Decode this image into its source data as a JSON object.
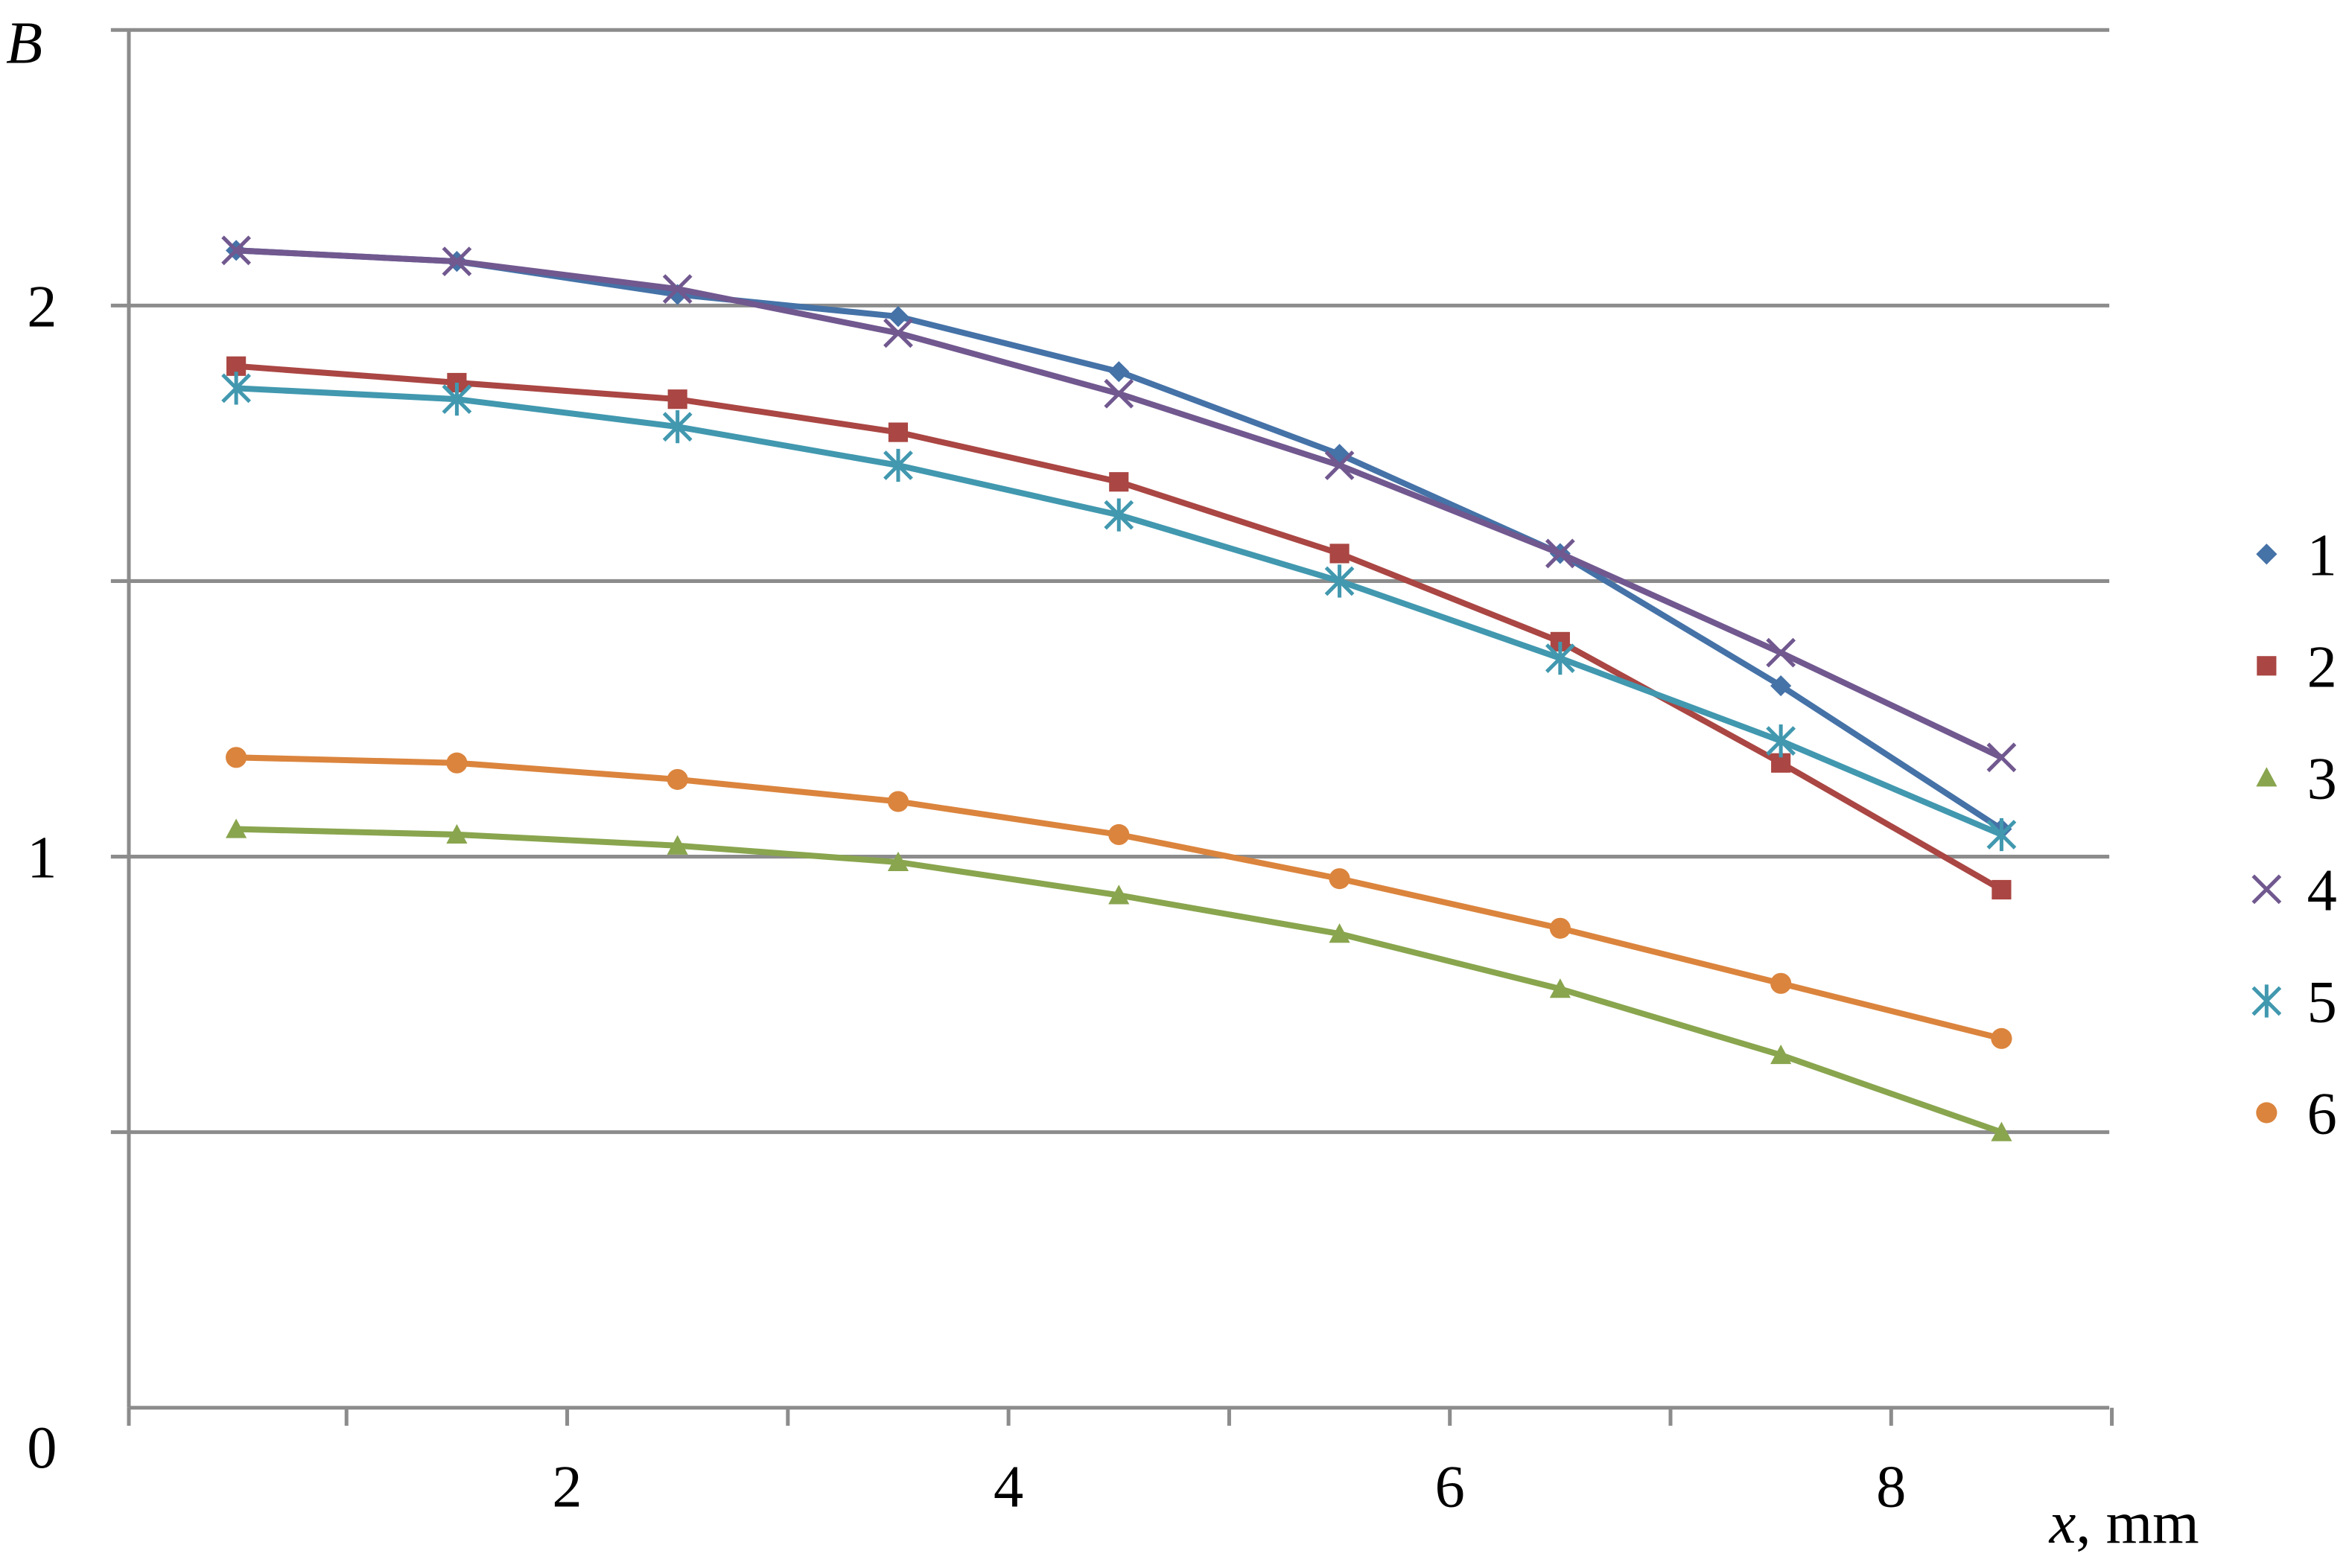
{
  "chart_data": {
    "type": "line",
    "title": "",
    "xlabel_italic": "x",
    "xlabel_unit": ", mm",
    "ylabel": "B",
    "xlim": [
      0,
      9
    ],
    "ylim": [
      0,
      2.5
    ],
    "x_ticks": [
      2,
      4,
      6,
      8
    ],
    "x_minor_ticks": [
      0,
      1,
      2,
      3,
      4,
      5,
      6,
      7,
      8,
      9
    ],
    "y_ticks": [
      0,
      1,
      2
    ],
    "y_gridlines": [
      0.5,
      1,
      1.5,
      2,
      2.5
    ],
    "grid": true,
    "legend_placement": "right",
    "x": [
      0.5,
      1.5,
      2.5,
      3.5,
      4.5,
      5.5,
      6.5,
      7.5,
      8.5
    ],
    "series": [
      {
        "name": "1",
        "color": "#4572A7",
        "marker": "diamond",
        "values": [
          2.1,
          2.08,
          2.02,
          1.98,
          1.88,
          1.73,
          1.55,
          1.31,
          1.05
        ]
      },
      {
        "name": "2",
        "color": "#AA4643",
        "marker": "square",
        "values": [
          1.89,
          1.86,
          1.83,
          1.77,
          1.68,
          1.55,
          1.39,
          1.17,
          0.94
        ]
      },
      {
        "name": "3",
        "color": "#89A54E",
        "marker": "triangle",
        "values": [
          1.05,
          1.04,
          1.02,
          0.99,
          0.93,
          0.86,
          0.76,
          0.64,
          0.5
        ]
      },
      {
        "name": "4",
        "color": "#71588F",
        "marker": "x",
        "values": [
          2.1,
          2.08,
          2.03,
          1.95,
          1.84,
          1.71,
          1.55,
          1.37,
          1.18
        ]
      },
      {
        "name": "5",
        "color": "#4198AF",
        "marker": "star",
        "values": [
          1.85,
          1.83,
          1.78,
          1.71,
          1.62,
          1.5,
          1.36,
          1.21,
          1.04
        ]
      },
      {
        "name": "6",
        "color": "#DB843D",
        "marker": "circle",
        "values": [
          1.18,
          1.17,
          1.14,
          1.1,
          1.04,
          0.96,
          0.87,
          0.77,
          0.67
        ]
      }
    ]
  }
}
